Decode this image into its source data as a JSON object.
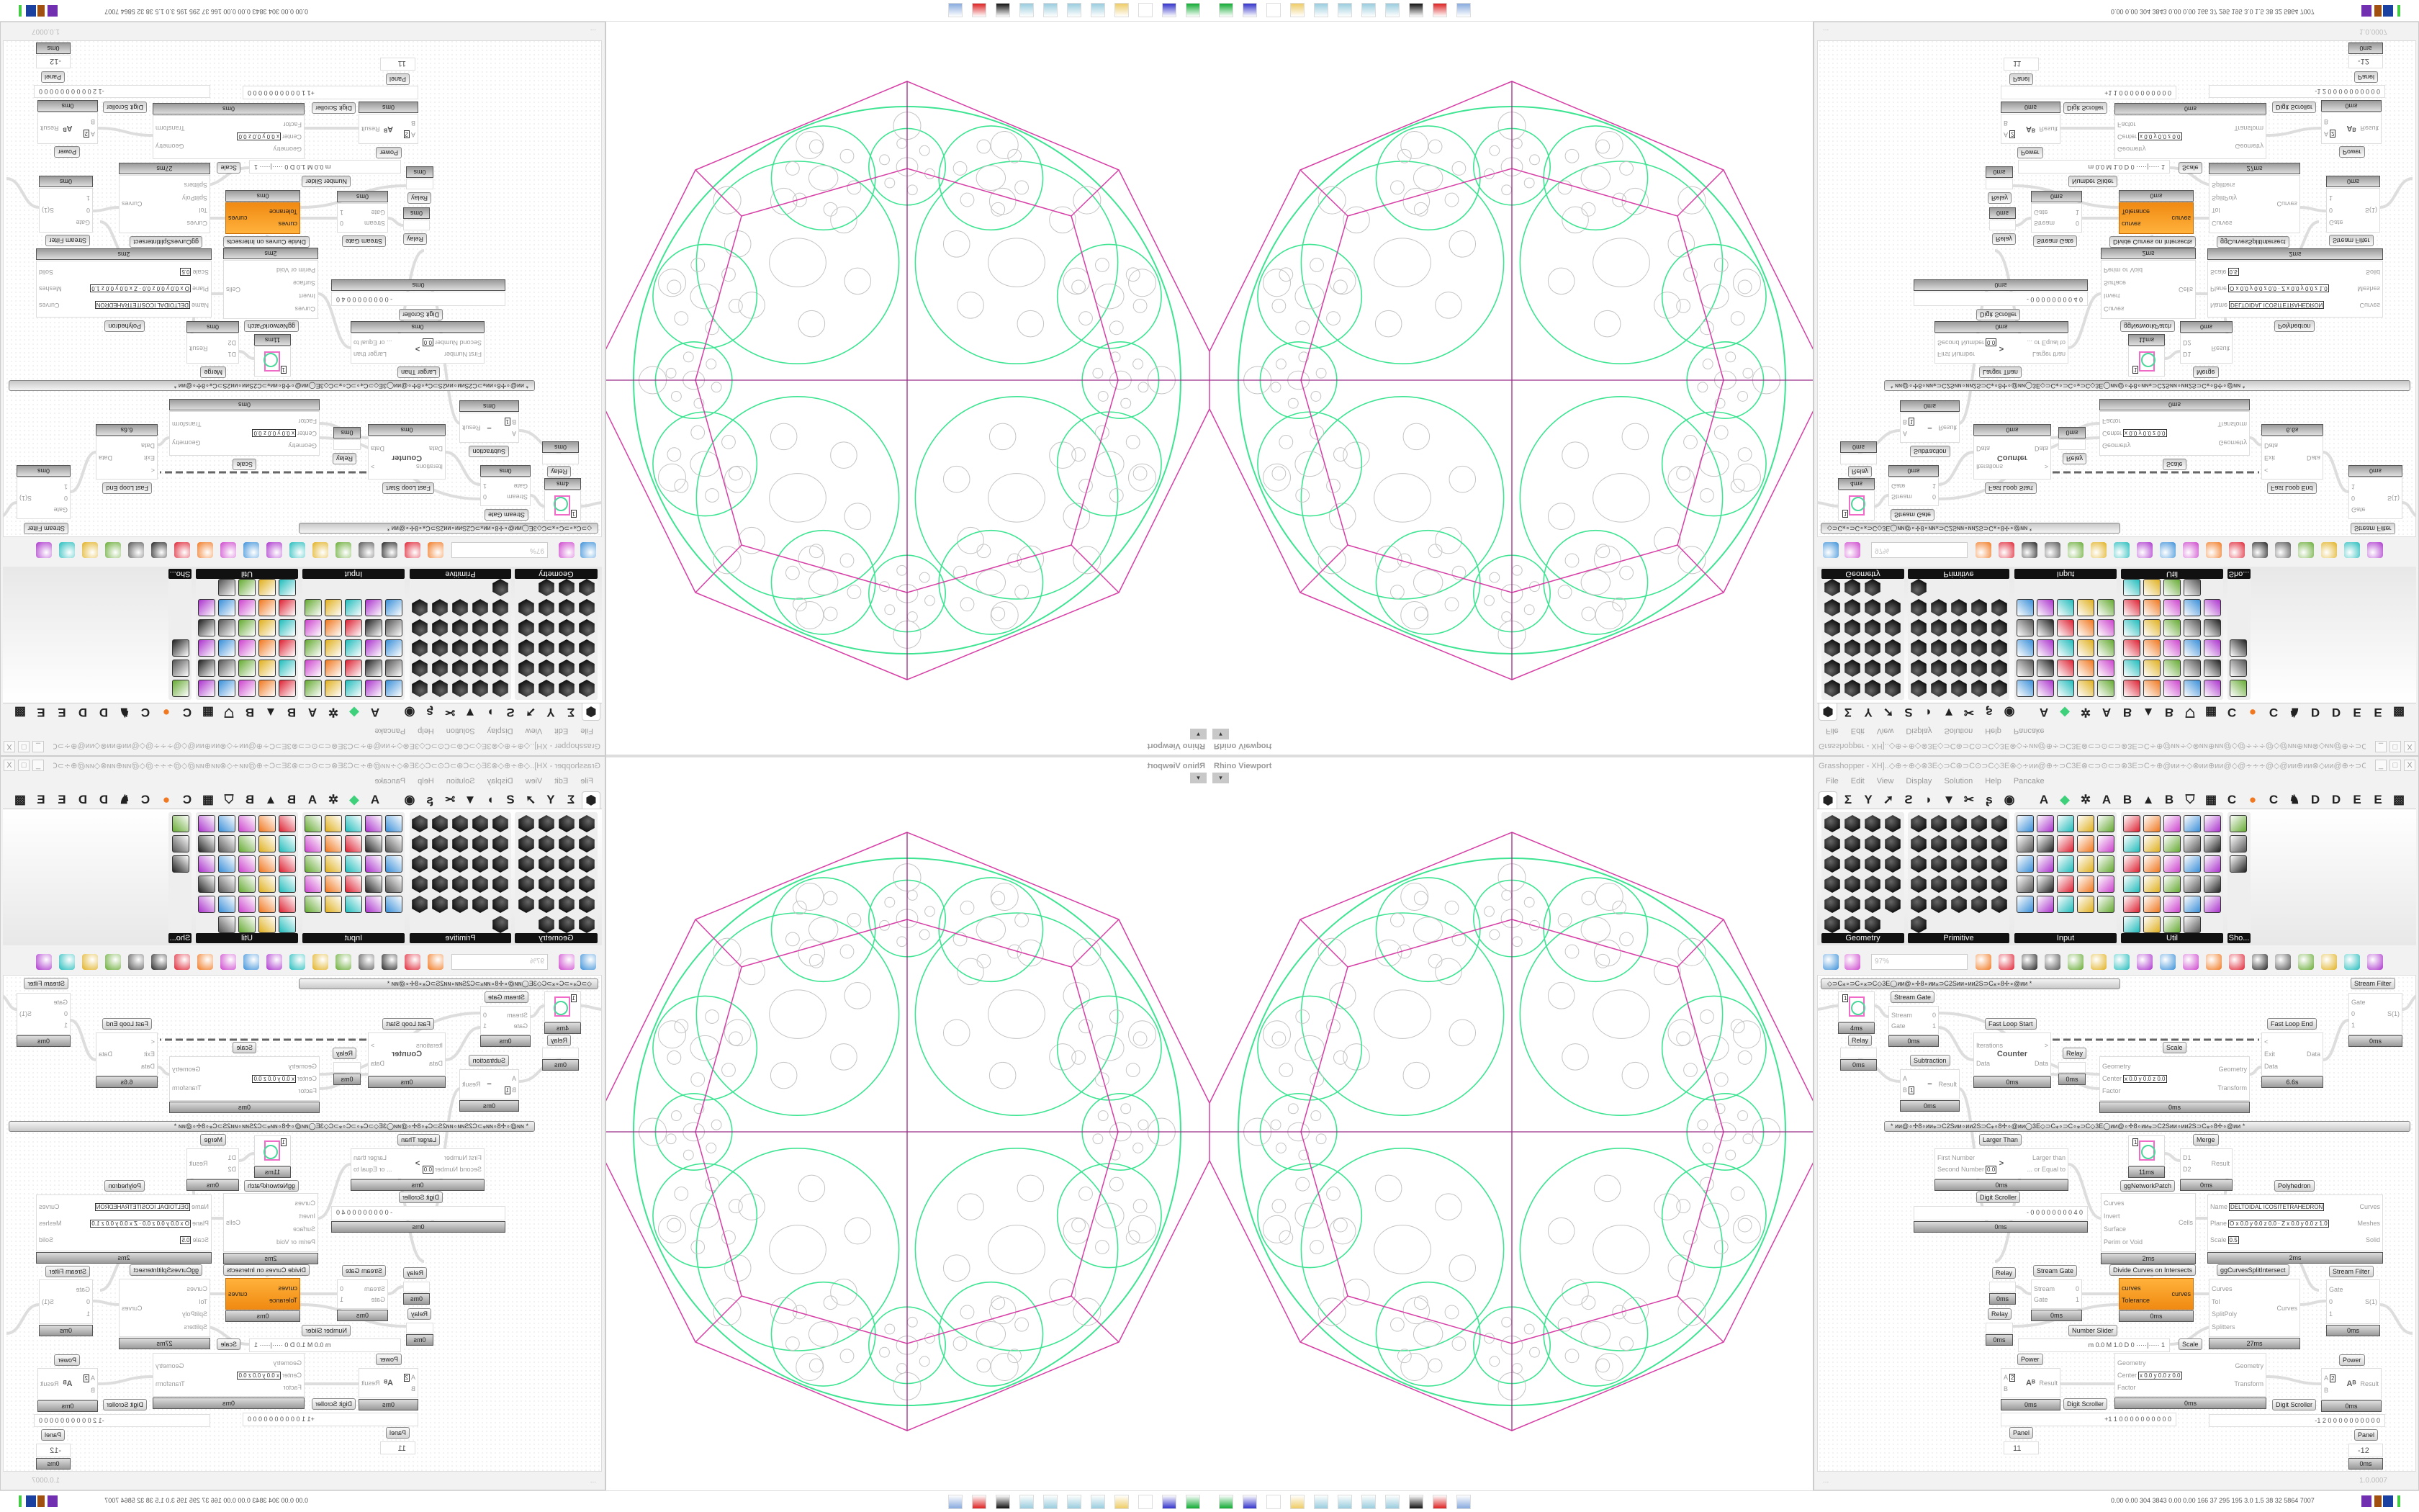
{
  "viewport": {
    "label": "Rhino Viewport",
    "dropdown": "▾",
    "colors": {
      "polyhedron": "#d63fa6",
      "axis": "#9a2d86",
      "cells": "#3ee492",
      "pattern": "#c4c4c4"
    }
  },
  "gh": {
    "title": "Grasshopper - XH]..◇⊕∻⊕◇⊗3E◇⊃C⊛⊃C⊙⊃C◇3E⊗◇∻ᴎᴎ@⊕∻⊃C3E⊗⊂⊃⊙⊂⊃⊗3E⊃C∻⊕@ᴎᴎ∻◇⊗ᴎᴎ⊕ᴎᴎ@◇@∻∻∻@◇@ᴎᴎ⊕ᴎᴎ⊗◇ᴎᴎ@⊕∻⊃C3E⊗⊂⊃⊙⊂⊃",
    "window_buttons": [
      "_",
      "□",
      "X"
    ],
    "menu": [
      "File",
      "Edit",
      "View",
      "Display",
      "Solution",
      "Help",
      "Pancake"
    ],
    "tabs": [
      {
        "icon": "params-hexagon",
        "glyph": "⬢",
        "selected": true
      },
      {
        "icon": "maths-sigma",
        "glyph": "Σ"
      },
      {
        "icon": "sets-y",
        "glyph": "Y"
      },
      {
        "icon": "vector-arrow",
        "glyph": "➚"
      },
      {
        "icon": "curve",
        "glyph": "ϩ"
      },
      {
        "icon": "surface",
        "glyph": "◗"
      },
      {
        "icon": "mesh",
        "glyph": "▼"
      },
      {
        "icon": "intersect",
        "glyph": "✂"
      },
      {
        "icon": "transform",
        "glyph": "ʂ"
      },
      {
        "icon": "display-eye",
        "glyph": "◉"
      },
      {
        "label": "A"
      },
      {
        "icon": "green-diamond",
        "glyph": "◆",
        "color": "#3ed07a"
      },
      {
        "icon": "gear",
        "glyph": "✲"
      },
      {
        "label": "A"
      },
      {
        "label": "B"
      },
      {
        "icon": "mountains",
        "glyph": "▲"
      },
      {
        "label": "B"
      },
      {
        "icon": "shield",
        "glyph": "⛉"
      },
      {
        "icon": "grid",
        "glyph": "▦"
      },
      {
        "label": "C"
      },
      {
        "icon": "orange-circle",
        "glyph": "●",
        "color": "#f07820"
      },
      {
        "label": "C"
      },
      {
        "icon": "rooster",
        "glyph": "♞"
      },
      {
        "label": "D"
      },
      {
        "label": "D"
      },
      {
        "label": "E"
      },
      {
        "label": "E"
      },
      {
        "icon": "grid-dots",
        "glyph": "▩"
      }
    ],
    "ribbon": [
      {
        "name": "Geometry",
        "style": "hex",
        "cols": 4,
        "icons": [
          "box",
          "line",
          "plane",
          "spiral",
          "point",
          "brep",
          "surface",
          "vector",
          "arrow",
          "rectangle",
          "text",
          "curve",
          "circle",
          "cube",
          "group",
          "field",
          "arc",
          "mesh",
          "mesh-face",
          "twisted-box",
          "spiral-mesh",
          "mesh-grid",
          "geometry-pipe"
        ]
      },
      {
        "name": "Primitive",
        "style": "hex",
        "cols": 5,
        "icons": [
          "boolean",
          "colour",
          "matrix",
          "angle",
          "domain",
          "time",
          "arrow-vector",
          "circle-rectangle",
          "data-path",
          "guid",
          "shader",
          "unicode",
          "hexagon",
          "file-path",
          "integer",
          "interval",
          "culture",
          "data",
          "number",
          "point-cloud",
          "folder",
          "complex",
          "string",
          "id",
          "sphere",
          "transform"
        ]
      },
      {
        "name": "Input",
        "style": "sq",
        "cols": 5,
        "icons": [
          "import",
          "button",
          "colour-picker",
          "3dm",
          "binoculars",
          "graph-mapper",
          "gradient-arrows",
          "paint-drip",
          "xyz",
          "toggle",
          "gradient",
          "colour-wheel",
          "img",
          "control-knob",
          "checker",
          "graph",
          "pdb",
          "file",
          "calendar-aug-20",
          "dial",
          "shp",
          "list",
          "clock",
          "colour-swatch",
          "id-tag"
        ]
      },
      {
        "name": "Util",
        "style": "sq",
        "cols": 5,
        "icons": [
          "cherry",
          "galapagos",
          "arrow",
          "path",
          "text-a",
          "play",
          "record",
          "timer",
          "spiral",
          "sphere-ball",
          "axes",
          "pencil",
          "stopwatch",
          "seven",
          "flask",
          "tree",
          "fuse",
          "egg",
          "wand",
          "fx",
          "loop-ring",
          "reload",
          "premiere",
          "number-01",
          "palette",
          "abc",
          "arrow-right",
          "ring",
          "cross"
        ]
      },
      {
        "name": "Sho...",
        "style": "sq",
        "cols": 1,
        "icons": [
          "vr-headset",
          "vr-headset-2",
          "presentation"
        ]
      }
    ],
    "toolbar": {
      "zoom": "97%",
      "icons": [
        "open-file",
        "save-file",
        "zoom-extents",
        "preview-eye",
        "sketch-pen",
        "sticky",
        "at-sign",
        "gha-export",
        "canvas-snapshot",
        "search-s",
        "gift-box",
        "balloon",
        "cross-wires",
        "bell",
        "ring-toggle",
        "red-gem",
        "teal-shape",
        "green-shape",
        "half-sphere",
        "blue-ball"
      ]
    },
    "groups": [
      "◇⊃C⁎∘⊃C∘⁎⊃C◇3E◯ᴎᴎ@∘✢8∘ᴎᴎ⁎⊃C2Sᴎᴎ∘ᴎᴎ2S⊃C⁎∘8✢∘@ᴎᴎ    *",
      "*      ᴎᴎ@∘✢8∘ᴎᴎ⁎⊃C2Sᴎᴎ∘ᴎᴎ2S⊃C⁎∘8✢∘@ᴎᴎ◯3E◇⊃C⁎∘⊃C∘⁎⊃C◇3E◯ᴎᴎ@∘✢8∘ᴎᴎ⁎⊃C2Sᴎᴎ∘ᴎᴎ2S⊃C⁎∘8✢∘@ᴎᴎ      *"
    ],
    "components": [
      {
        "kind": "preview",
        "value": "1",
        "footer": "4ms"
      },
      {
        "kind": "relay",
        "label": "Relay",
        "footer": "0ms"
      },
      {
        "label": "Stream Gate",
        "inputs": [
          "Stream",
          "Gate"
        ],
        "outputs": [
          "0",
          "1"
        ],
        "footer": "0ms"
      },
      {
        "label": "Fast Loop Start",
        "inputs": [
          "Iterations",
          "Data"
        ],
        "outputs": [
          ">",
          "Data"
        ],
        "center": "Counter",
        "footer": "0ms"
      },
      {
        "kind": "relay",
        "label": "Relay",
        "footer": "0ms"
      },
      {
        "label": "Subtraction",
        "inputs": [
          "A",
          {
            "n": "B",
            "v": "1"
          }
        ],
        "outputs": [
          "Result"
        ],
        "center": "−",
        "footer": "0ms"
      },
      {
        "label": "Scale",
        "inputs": [
          "Geometry",
          {
            "n": "Center",
            "v": "x 0.0 y 0.0 z 0.0"
          },
          "Factor"
        ],
        "outputs": [
          "Geometry",
          "Transform"
        ],
        "footer": "0ms"
      },
      {
        "label": "Fast Loop End",
        "inputs": [
          "<",
          "Exit",
          "Data"
        ],
        "outputs": [
          "Data"
        ],
        "footer": "6.6s"
      },
      {
        "label": "Stream Filter",
        "inputs": [
          "Gate",
          "0",
          "1"
        ],
        "outputs": [
          "S(1)"
        ],
        "footer": "0ms"
      },
      {
        "label": "Larger Than",
        "inputs": [
          "First Number",
          {
            "n": "Second Number",
            "v": "0.0"
          }
        ],
        "outputs": [
          "Larger than",
          "... or Equal to"
        ],
        "center": ">",
        "footer": "0ms"
      },
      {
        "kind": "preview",
        "value": "1",
        "footer": "11ms",
        "label": "ggNetworkPatch"
      },
      {
        "label": "Merge",
        "inputs": [
          "D1",
          "D2"
        ],
        "outputs": [
          "Result"
        ],
        "footer": "0ms"
      },
      {
        "kind": "scroller",
        "label": "Digit Scroller",
        "value": "- 0 0 0 0 0 0 0 0 4 0",
        "footer": "0ms"
      },
      {
        "inputs": [
          "Curves",
          "Invert",
          "Surface",
          "Perim or Void"
        ],
        "outputs": [
          "Cells"
        ],
        "footer": "2ms"
      },
      {
        "label": "Polyhedron",
        "inputs": [
          {
            "n": "Name",
            "v": "DELTOIDAL ICOSITETRAHEDRON"
          },
          {
            "n": "Plane",
            "v": "O x 0.0 y 0.0 z 0.0 · Z x 0.0 y 0.0 z 1.0"
          },
          {
            "n": "Scale",
            "v": "0.5"
          }
        ],
        "outputs": [
          "Curves",
          "Meshes",
          "Solid"
        ],
        "footer": "2ms"
      },
      {
        "kind": "relay",
        "label": "Relay",
        "footer": "0ms"
      },
      {
        "kind": "relay",
        "label": "Relay",
        "footer": "0ms"
      },
      {
        "label": "Stream Gate",
        "inputs": [
          "Stream",
          "Gate"
        ],
        "outputs": [
          "0",
          "1"
        ],
        "footer": "0ms"
      },
      {
        "kind": "orange",
        "label": "Divide Curves on Intersects",
        "inputs": [
          "curves",
          "Tolerance"
        ],
        "outputs": [
          "curves"
        ],
        "footer": "0ms"
      },
      {
        "label": "ggCurvesSplitIntersect",
        "inputs": [
          "Curves",
          "Tol",
          "SplitPoly",
          "Splitters"
        ],
        "outputs": [
          "Curves"
        ],
        "footer": "27ms"
      },
      {
        "label": "Stream Filter",
        "inputs": [
          "Gate",
          "0",
          "1"
        ],
        "outputs": [
          "S(1)"
        ],
        "footer": "0ms"
      },
      {
        "kind": "scroller",
        "label": "Number Slider",
        "value": "m 0.0  M 1.0  D 0   ·····|·····   1"
      },
      {
        "label": "Scale",
        "inputs": [
          "Geometry",
          {
            "n": "Center",
            "v": "x 0.0 y 0.0 z 0.0"
          },
          "Factor"
        ],
        "outputs": [
          "Geometry",
          "Transform"
        ],
        "footer": "0ms"
      },
      {
        "label": "Power",
        "inputs": [
          {
            "n": "A",
            "v": "2"
          },
          "B"
        ],
        "outputs": [
          "Result"
        ],
        "center": "Aᴮ",
        "footer": "0ms"
      },
      {
        "kind": "scroller",
        "label": "Digit Scroller",
        "value": "+1 1  0 0 0 0 0 0 0 0 0 0"
      },
      {
        "kind": "scroller",
        "label": "Digit Scroller",
        "value": "-1 2  0 0 0 0 0 0 0 0 0 0"
      },
      {
        "label": "Power",
        "inputs": [
          {
            "n": "A",
            "v": "2"
          },
          "B"
        ],
        "outputs": [
          "Result"
        ],
        "center": "Aᴮ",
        "footer": "0ms"
      },
      {
        "kind": "panel",
        "label": "Panel",
        "value": "11"
      },
      {
        "kind": "panel",
        "label": "Panel",
        "value": "-12",
        "footer": "0ms"
      }
    ],
    "status": {
      "left": "...",
      "version": "1.0.0007"
    }
  },
  "taskbar": {
    "icons": [
      "remote-terminal",
      "floppy-64",
      "blank",
      "folder",
      "notepad",
      "notepad",
      "notepad",
      "notepad",
      "inkscape",
      "red-app",
      "calculator"
    ],
    "stats": "0.00 0.00 304 3843 0.00 0.00 166 37 295 195 3.0 1.5 38 32 5864 7007"
  }
}
